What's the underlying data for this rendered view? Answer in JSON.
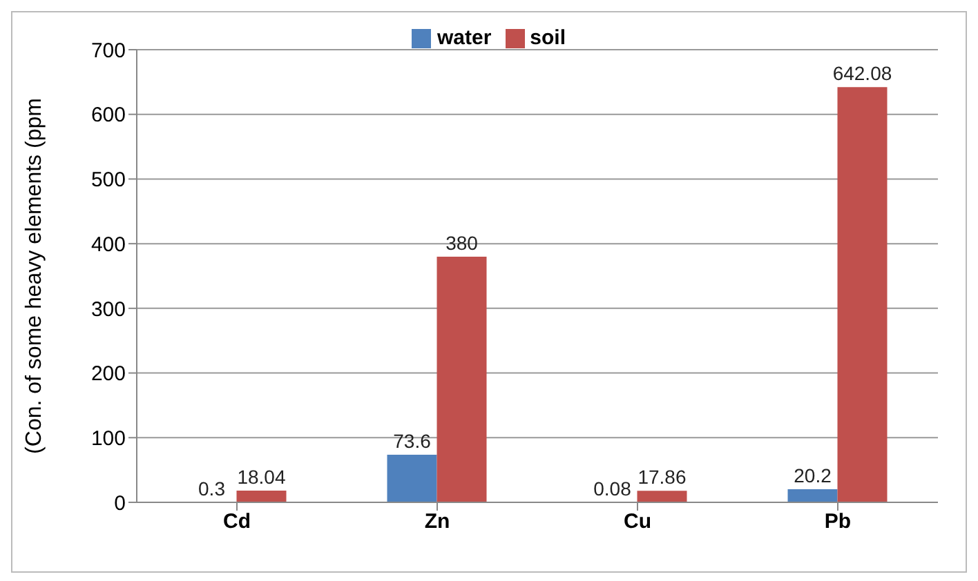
{
  "chart_data": {
    "type": "bar",
    "ylabel": "(Con. of some heavy elements (ppm",
    "categories": [
      "Cd",
      "Zn",
      "Cu",
      "Pb"
    ],
    "series": [
      {
        "name": "water",
        "color": "#4f81bd",
        "values": [
          0.3,
          73.6,
          0.08,
          20.2
        ]
      },
      {
        "name": "soil",
        "color": "#c0504d",
        "values": [
          18.04,
          380,
          17.86,
          642.08
        ]
      }
    ],
    "ylim": [
      0,
      700
    ],
    "yticks": [
      0,
      100,
      200,
      300,
      400,
      500,
      600,
      700
    ],
    "grid": "y",
    "legend": "top",
    "data_labels": true
  }
}
